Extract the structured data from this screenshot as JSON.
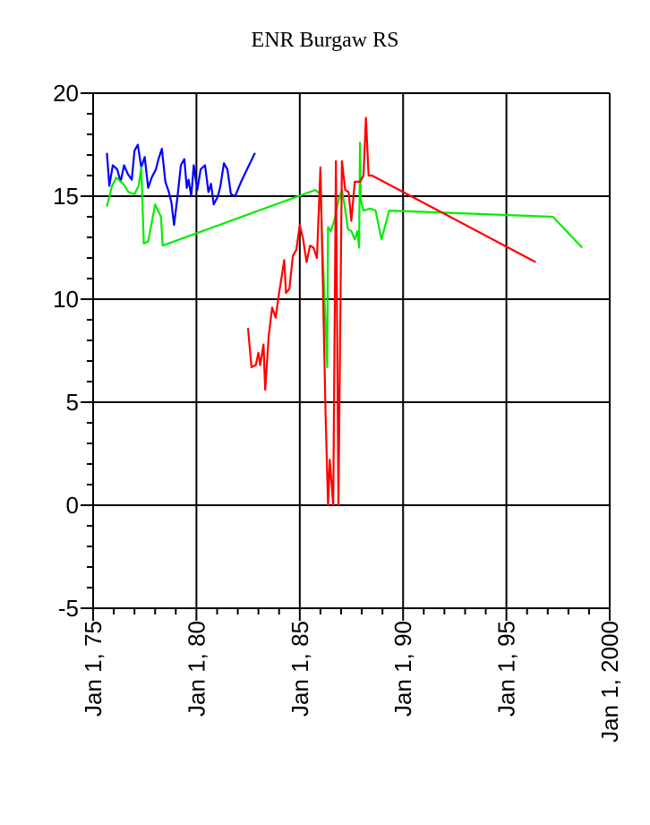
{
  "chart_data": {
    "type": "line",
    "title": "ENR Burgaw RS",
    "xlabel": "",
    "ylabel": "",
    "x_axis_kind": "date",
    "xlim": [
      "1975-01-01",
      "2000-01-01"
    ],
    "ylim": [
      -5,
      20
    ],
    "y_ticks": [
      20,
      15,
      10,
      5,
      0,
      -5
    ],
    "y_tick_labels": [
      "20",
      "15",
      "10",
      "5",
      "0",
      "-5"
    ],
    "x_ticks": [
      "1975-01-01",
      "1980-01-01",
      "1985-01-01",
      "1990-01-01",
      "1995-01-01",
      "2000-01-01"
    ],
    "x_tick_labels": [
      "Jan 1, 75",
      "Jan 1, 80",
      "Jan 1, 85",
      "Jan 1, 90",
      "Jan 1, 95",
      "Jan 1, 2000"
    ],
    "grid": true,
    "series": [
      {
        "color": "#0000ff",
        "points": [
          [
            "1975-09-01",
            17.1
          ],
          [
            "1975-10-15",
            15.5
          ],
          [
            "1975-12-15",
            16.5
          ],
          [
            "1976-03-01",
            16.3
          ],
          [
            "1976-05-01",
            15.7
          ],
          [
            "1976-07-01",
            16.5
          ],
          [
            "1976-09-01",
            16.1
          ],
          [
            "1976-11-15",
            15.8
          ],
          [
            "1977-01-01",
            17.2
          ],
          [
            "1977-03-01",
            17.5
          ],
          [
            "1977-05-01",
            16.4
          ],
          [
            "1977-07-01",
            16.9
          ],
          [
            "1977-09-01",
            15.4
          ],
          [
            "1977-11-01",
            15.9
          ],
          [
            "1978-01-15",
            16.3
          ],
          [
            "1978-03-01",
            16.8
          ],
          [
            "1978-05-01",
            17.3
          ],
          [
            "1978-07-01",
            15.7
          ],
          [
            "1978-09-01",
            15.2
          ],
          [
            "1978-10-15",
            14.7
          ],
          [
            "1978-12-01",
            13.6
          ],
          [
            "1979-02-01",
            15.0
          ],
          [
            "1979-04-01",
            16.5
          ],
          [
            "1979-06-01",
            16.8
          ],
          [
            "1979-07-15",
            15.4
          ],
          [
            "1979-08-15",
            15.8
          ],
          [
            "1979-10-01",
            15.0
          ],
          [
            "1979-11-15",
            16.5
          ],
          [
            "1980-01-15",
            15.3
          ],
          [
            "1980-03-15",
            16.3
          ],
          [
            "1980-06-01",
            16.5
          ],
          [
            "1980-08-01",
            15.2
          ],
          [
            "1980-09-15",
            15.6
          ],
          [
            "1980-11-01",
            14.6
          ],
          [
            "1981-01-15",
            15.0
          ],
          [
            "1981-03-01",
            15.5
          ],
          [
            "1981-05-01",
            16.6
          ],
          [
            "1981-07-01",
            16.3
          ],
          [
            "1981-09-01",
            15.1
          ],
          [
            "1981-11-15",
            15.0
          ],
          [
            "1982-03-01",
            15.7
          ],
          [
            "1982-07-01",
            16.4
          ],
          [
            "1982-11-01",
            17.1
          ]
        ]
      },
      {
        "color": "#00ee00",
        "points": [
          [
            "1975-09-01",
            14.5
          ],
          [
            "1975-12-01",
            15.5
          ],
          [
            "1976-02-15",
            15.9
          ],
          [
            "1976-06-15",
            15.6
          ],
          [
            "1976-09-15",
            15.2
          ],
          [
            "1977-01-01",
            15.1
          ],
          [
            "1977-03-15",
            15.5
          ],
          [
            "1977-05-01",
            16.4
          ],
          [
            "1977-06-15",
            12.7
          ],
          [
            "1977-09-01",
            12.8
          ],
          [
            "1978-01-01",
            14.6
          ],
          [
            "1978-04-15",
            14.0
          ],
          [
            "1978-05-15",
            12.6
          ],
          [
            "1985-10-01",
            15.3
          ],
          [
            "1986-01-01",
            15.1
          ],
          [
            "1986-05-01",
            6.7
          ],
          [
            "1986-05-15",
            13.5
          ],
          [
            "1986-07-01",
            13.3
          ],
          [
            "1986-09-01",
            13.8
          ],
          [
            "1986-11-15",
            14.8
          ],
          [
            "1987-01-15",
            15.3
          ],
          [
            "1987-03-01",
            14.6
          ],
          [
            "1987-05-01",
            13.4
          ],
          [
            "1987-07-01",
            13.3
          ],
          [
            "1987-09-01",
            12.9
          ],
          [
            "1987-10-15",
            13.3
          ],
          [
            "1987-11-15",
            12.5
          ],
          [
            "1987-12-01",
            17.6
          ],
          [
            "1987-12-15",
            14.8
          ],
          [
            "1988-02-01",
            14.3
          ],
          [
            "1988-06-01",
            14.4
          ],
          [
            "1988-09-01",
            14.3
          ],
          [
            "1988-12-15",
            12.9
          ],
          [
            "1989-05-01",
            14.3
          ],
          [
            "1997-04-01",
            14.0
          ],
          [
            "1998-09-01",
            12.5
          ]
        ]
      },
      {
        "color": "#ff0000",
        "points": [
          [
            "1982-07-01",
            8.6
          ],
          [
            "1982-09-01",
            6.7
          ],
          [
            "1982-11-15",
            6.8
          ],
          [
            "1983-01-01",
            7.4
          ],
          [
            "1983-02-01",
            6.8
          ],
          [
            "1983-04-01",
            7.8
          ],
          [
            "1983-05-01",
            5.6
          ],
          [
            "1983-07-01",
            8.2
          ],
          [
            "1983-09-01",
            9.6
          ],
          [
            "1983-11-01",
            9.1
          ],
          [
            "1984-01-01",
            10.3
          ],
          [
            "1984-04-01",
            11.9
          ],
          [
            "1984-05-01",
            10.3
          ],
          [
            "1984-07-01",
            10.5
          ],
          [
            "1984-09-01",
            12.1
          ],
          [
            "1984-11-01",
            12.4
          ],
          [
            "1985-01-01",
            13.6
          ],
          [
            "1985-03-01",
            12.9
          ],
          [
            "1985-05-01",
            11.8
          ],
          [
            "1985-07-01",
            12.6
          ],
          [
            "1985-09-01",
            12.5
          ],
          [
            "1985-11-01",
            12.0
          ],
          [
            "1986-01-01",
            16.4
          ],
          [
            "1986-04-01",
            4.5
          ],
          [
            "1986-05-15",
            0.0
          ],
          [
            "1986-06-15",
            2.2
          ],
          [
            "1986-08-15",
            0.0
          ],
          [
            "1986-10-01",
            16.7
          ],
          [
            "1986-11-15",
            0.0
          ],
          [
            "1987-01-15",
            16.7
          ],
          [
            "1987-03-15",
            15.3
          ],
          [
            "1987-05-15",
            15.2
          ],
          [
            "1987-07-01",
            13.8
          ],
          [
            "1987-09-01",
            15.7
          ],
          [
            "1987-12-01",
            15.7
          ],
          [
            "1988-02-01",
            16.0
          ],
          [
            "1988-03-15",
            18.8
          ],
          [
            "1988-05-01",
            16.0
          ],
          [
            "1988-07-01",
            16.0
          ],
          [
            "1996-06-01",
            11.8
          ]
        ]
      }
    ]
  }
}
